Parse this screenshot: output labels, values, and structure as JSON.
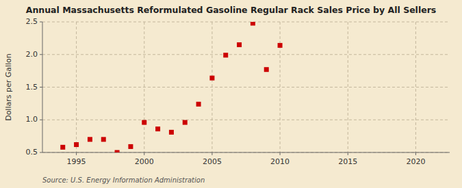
{
  "chart_data": {
    "type": "scatter",
    "title": "Annual Massachusetts Reformulated Gasoline Regular Rack Sales Price by All Sellers",
    "ylabel": "Dollars per Gallon",
    "source": "Source: U.S. Energy Information Administration",
    "x": [
      1994,
      1995,
      1996,
      1997,
      1998,
      1999,
      2000,
      2001,
      2002,
      2003,
      2004,
      2005,
      2006,
      2007,
      2008,
      2009,
      2010
    ],
    "values": [
      0.58,
      0.62,
      0.7,
      0.7,
      0.5,
      0.59,
      0.96,
      0.86,
      0.81,
      0.96,
      1.24,
      1.64,
      1.99,
      2.15,
      2.48,
      1.77,
      2.14
    ],
    "color": "#cc0000",
    "marker": "square",
    "xlim": [
      1992.5,
      2022.5
    ],
    "ylim": [
      0.5,
      2.5
    ],
    "xticks": [
      1995,
      2000,
      2005,
      2010,
      2015,
      2020
    ],
    "yticks": [
      0.5,
      {
        "value": 1.0,
        "label": "1.0"
      },
      1.5,
      {
        "value": 2.0,
        "label": "2.0"
      },
      2.5
    ],
    "grid": true
  }
}
